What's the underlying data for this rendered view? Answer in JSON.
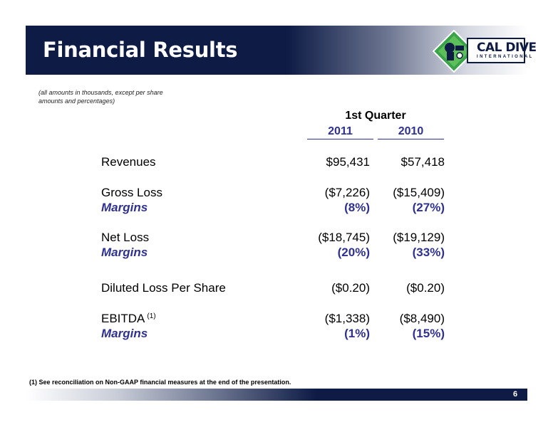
{
  "header": {
    "title": "Financial Results",
    "logo": {
      "name": "CAL DIVE",
      "sub": "INTERNATIONAL",
      "icon": "diver-diamond-icon"
    }
  },
  "note": "(all amounts in thousands, except per share amounts and percentages)",
  "table": {
    "period": "1st Quarter",
    "years": [
      "2011",
      "2010"
    ],
    "rows": [
      {
        "label": "Revenues",
        "v2011": "$95,431",
        "v2010": "$57,418"
      },
      {
        "label": "Gross Loss",
        "v2011": "($7,226)",
        "v2010": "($15,409)"
      },
      {
        "label": "Margins",
        "v2011": "(8%)",
        "v2010": "(27%)"
      },
      {
        "label": "Net Loss",
        "v2011": "($18,745)",
        "v2010": "($19,129)"
      },
      {
        "label": "Margins",
        "v2011": "(20%)",
        "v2010": "(33%)"
      },
      {
        "label": "Diluted Loss Per Share",
        "v2011": "($0.20)",
        "v2010": "($0.20)"
      },
      {
        "label": "EBITDA",
        "sup": "(1)",
        "v2011": "($1,338)",
        "v2010": "($8,490)"
      },
      {
        "label": "Margins",
        "v2011": "(1%)",
        "v2010": "(15%)"
      }
    ]
  },
  "footnote": "(1) See reconciliation on Non-GAAP financial measures at the end of the presentation.",
  "page_number": "6",
  "colors": {
    "navy": "#0d1b45",
    "accent_blue": "#2e3192",
    "logo_green": "#3aa34a"
  }
}
